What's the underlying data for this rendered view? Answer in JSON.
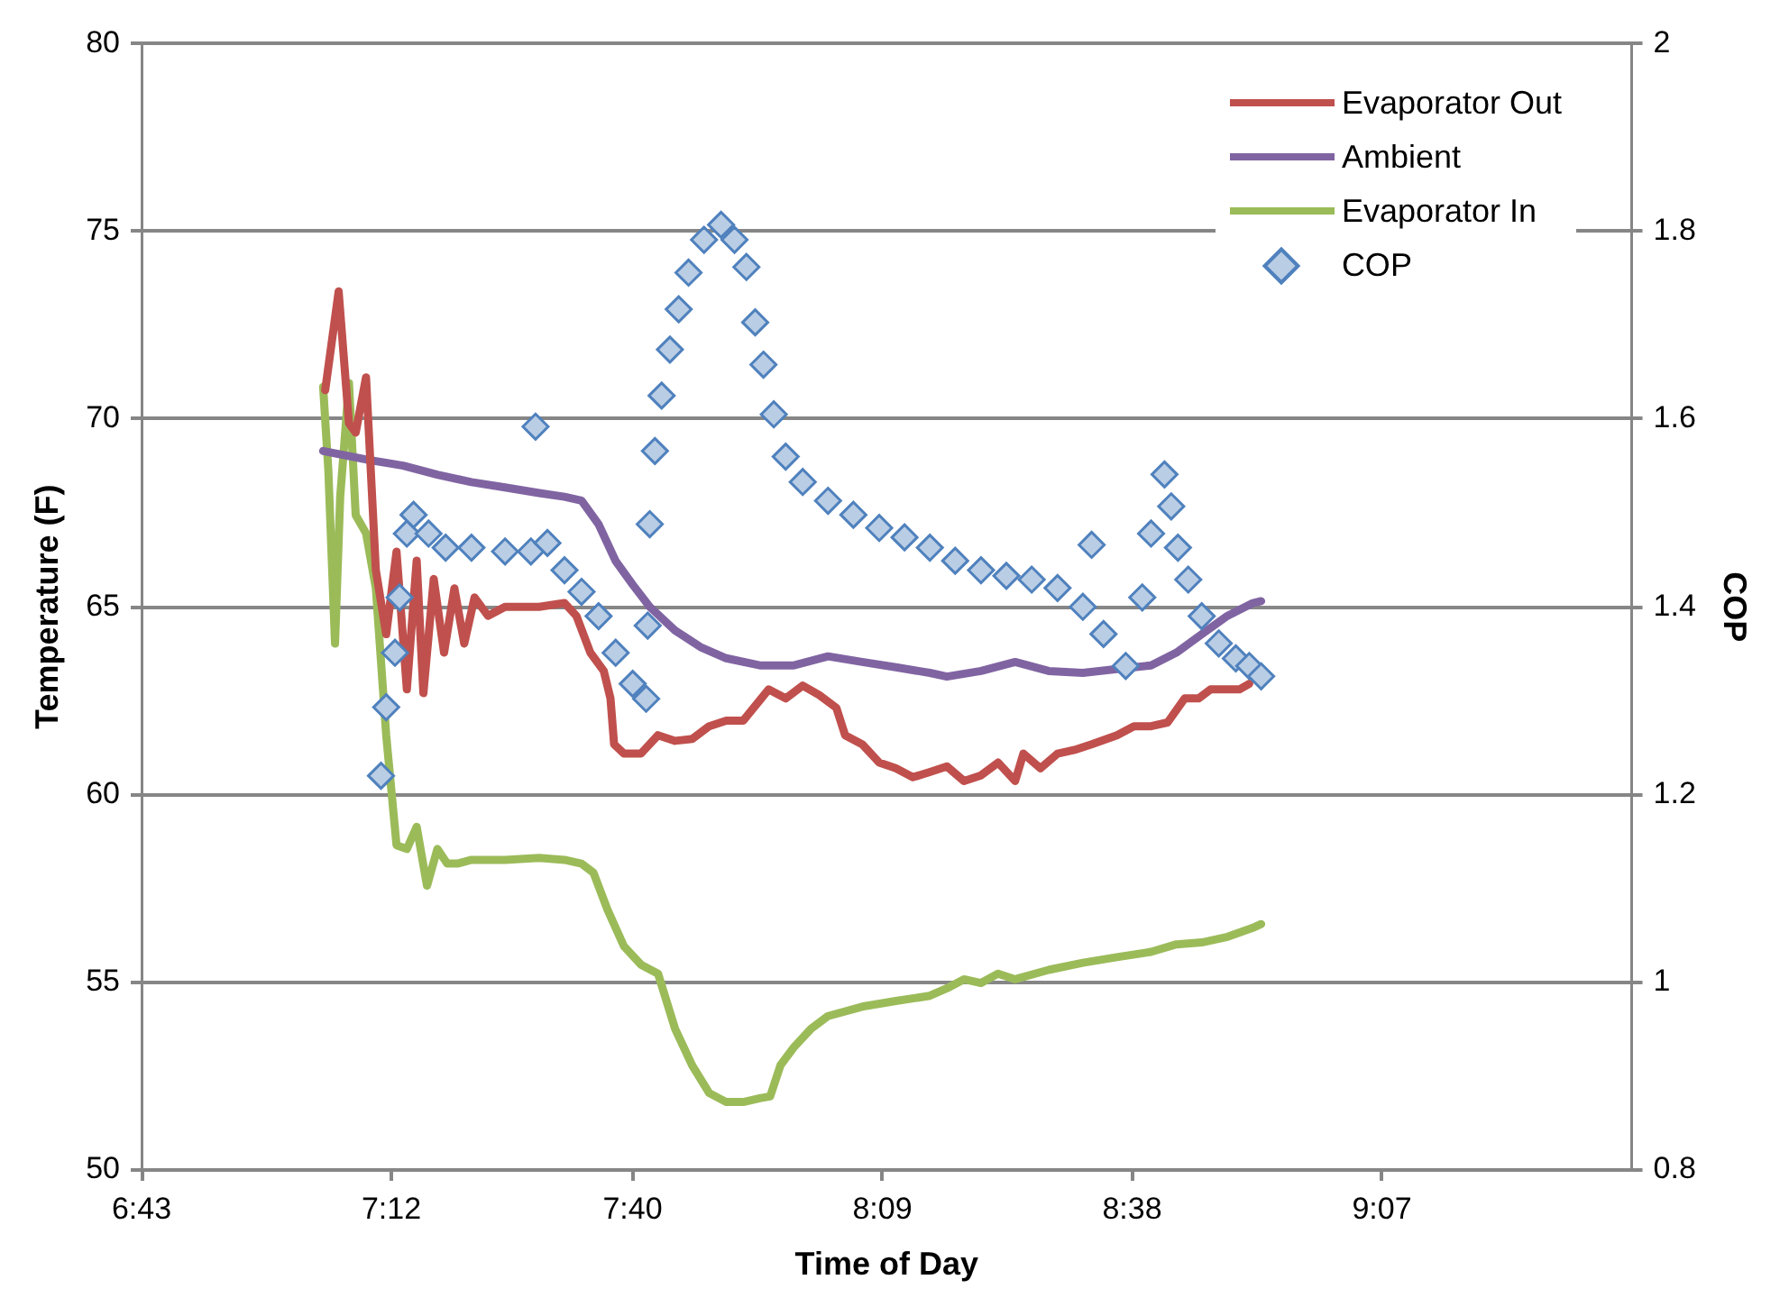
{
  "chart_data": {
    "type": "line",
    "xlabel": "Time of Day",
    "ylabel": "Temperature (F)",
    "y2label": "COP",
    "xlim": [
      6.7167,
      9.6
    ],
    "xticks": [
      {
        "value": 6.7167,
        "label": "6:43"
      },
      {
        "value": 7.2,
        "label": "7:12"
      },
      {
        "value": 7.6667,
        "label": "7:40"
      },
      {
        "value": 8.15,
        "label": "8:09"
      },
      {
        "value": 8.6333,
        "label": "8:38"
      },
      {
        "value": 9.1167,
        "label": "9:07"
      }
    ],
    "ylim": [
      50,
      80
    ],
    "yticks": [
      50,
      55,
      60,
      65,
      70,
      75,
      80
    ],
    "y2lim": [
      0.8,
      2
    ],
    "y2ticks": [
      0.8,
      1,
      1.2,
      1.4,
      1.6,
      1.8,
      2
    ],
    "grid": "y",
    "legend": "top right",
    "line_style": "solid",
    "marker": "none",
    "series": [
      {
        "name": "Evaporator Out",
        "color": "#c0504d",
        "x": [
          7.072,
          7.098,
          7.118,
          7.131,
          7.151,
          7.17,
          7.19,
          7.21,
          7.23,
          7.249,
          7.262,
          7.282,
          7.302,
          7.322,
          7.341,
          7.361,
          7.387,
          7.42,
          7.486,
          7.535,
          7.558,
          7.585,
          7.611,
          7.624,
          7.631,
          7.65,
          7.683,
          7.716,
          7.749,
          7.782,
          7.815,
          7.848,
          7.881,
          7.93,
          7.963,
          7.996,
          8.028,
          8.061,
          8.078,
          8.111,
          8.144,
          8.176,
          8.209,
          8.242,
          8.275,
          8.308,
          8.341,
          8.374,
          8.407,
          8.423,
          8.456,
          8.489,
          8.522,
          8.555,
          8.604,
          8.637,
          8.67,
          8.702,
          8.735,
          8.762,
          8.785,
          8.818,
          8.841,
          8.86
        ],
        "values": [
          70.77,
          73.4,
          69.89,
          69.64,
          71.11,
          65.98,
          64.27,
          66.47,
          62.8,
          66.23,
          62.7,
          65.74,
          63.78,
          65.49,
          64.02,
          65.25,
          64.76,
          65.0,
          65.0,
          65.1,
          64.76,
          63.78,
          63.29,
          62.56,
          61.34,
          61.09,
          61.09,
          61.58,
          61.43,
          61.48,
          61.82,
          61.97,
          61.97,
          62.8,
          62.56,
          62.9,
          62.65,
          62.31,
          61.58,
          61.34,
          60.85,
          60.7,
          60.46,
          60.6,
          60.75,
          60.36,
          60.51,
          60.85,
          60.36,
          61.09,
          60.7,
          61.09,
          61.19,
          61.34,
          61.58,
          61.82,
          61.82,
          61.92,
          62.56,
          62.56,
          62.8,
          62.8,
          62.8,
          62.95
        ]
      },
      {
        "name": "Ambient",
        "color": "#8064a2",
        "x": [
          7.068,
          7.157,
          7.223,
          7.289,
          7.355,
          7.42,
          7.486,
          7.535,
          7.568,
          7.601,
          7.634,
          7.667,
          7.7,
          7.749,
          7.798,
          7.848,
          7.913,
          7.979,
          8.045,
          8.111,
          8.176,
          8.242,
          8.275,
          8.341,
          8.407,
          8.472,
          8.538,
          8.604,
          8.67,
          8.719,
          8.768,
          8.818,
          8.867,
          8.883
        ],
        "values": [
          69.15,
          68.91,
          68.76,
          68.52,
          68.32,
          68.18,
          68.03,
          67.93,
          67.83,
          67.2,
          66.22,
          65.59,
          65.0,
          64.37,
          63.93,
          63.63,
          63.44,
          63.44,
          63.68,
          63.53,
          63.39,
          63.24,
          63.14,
          63.29,
          63.53,
          63.29,
          63.24,
          63.34,
          63.44,
          63.78,
          64.27,
          64.76,
          65.1,
          65.15
        ]
      },
      {
        "name": "Evaporator In",
        "color": "#9bbb59",
        "x": [
          7.068,
          7.078,
          7.091,
          7.101,
          7.118,
          7.131,
          7.151,
          7.17,
          7.19,
          7.21,
          7.23,
          7.249,
          7.269,
          7.289,
          7.308,
          7.328,
          7.355,
          7.42,
          7.486,
          7.535,
          7.568,
          7.591,
          7.618,
          7.65,
          7.683,
          7.716,
          7.749,
          7.782,
          7.815,
          7.848,
          7.881,
          7.913,
          7.933,
          7.953,
          7.979,
          8.012,
          8.045,
          8.111,
          8.176,
          8.242,
          8.275,
          8.308,
          8.341,
          8.374,
          8.407,
          8.472,
          8.538,
          8.604,
          8.67,
          8.719,
          8.768,
          8.818,
          8.867,
          8.883
        ],
        "values": [
          70.86,
          68.66,
          64.02,
          67.93,
          70.96,
          67.44,
          66.96,
          65.49,
          61.58,
          58.65,
          58.55,
          59.14,
          57.57,
          58.55,
          58.16,
          58.16,
          58.26,
          58.26,
          58.31,
          58.26,
          58.16,
          57.92,
          56.94,
          55.96,
          55.47,
          55.23,
          53.76,
          52.79,
          52.05,
          51.81,
          51.81,
          51.91,
          51.96,
          52.79,
          53.27,
          53.76,
          54.1,
          54.35,
          54.5,
          54.64,
          54.84,
          55.08,
          54.98,
          55.23,
          55.08,
          55.33,
          55.52,
          55.67,
          55.81,
          56.01,
          56.06,
          56.21,
          56.45,
          56.55
        ]
      },
      {
        "name": "COP",
        "type": "scatter",
        "axis": "y2",
        "marker": "diamond",
        "color": "#4f81bd",
        "x": [
          7.18,
          7.19,
          7.207,
          7.216,
          7.23,
          7.243,
          7.272,
          7.305,
          7.355,
          7.42,
          7.47,
          7.479,
          7.502,
          7.535,
          7.568,
          7.601,
          7.634,
          7.667,
          7.693,
          7.696,
          7.7,
          7.71,
          7.723,
          7.739,
          7.756,
          7.775,
          7.805,
          7.838,
          7.864,
          7.887,
          7.904,
          7.92,
          7.94,
          7.963,
          7.996,
          8.045,
          8.094,
          8.144,
          8.193,
          8.242,
          8.291,
          8.341,
          8.39,
          8.439,
          8.489,
          8.538,
          8.555,
          8.578,
          8.621,
          8.653,
          8.67,
          8.696,
          8.709,
          8.722,
          8.742,
          8.768,
          8.801,
          8.834,
          8.86,
          8.883
        ],
        "values": [
          1.22,
          1.293,
          1.351,
          1.41,
          1.478,
          1.498,
          1.478,
          1.463,
          1.463,
          1.459,
          1.459,
          1.592,
          1.468,
          1.439,
          1.416,
          1.39,
          1.351,
          1.318,
          1.302,
          1.38,
          1.488,
          1.566,
          1.625,
          1.674,
          1.717,
          1.756,
          1.791,
          1.807,
          1.791,
          1.762,
          1.703,
          1.658,
          1.605,
          1.56,
          1.533,
          1.513,
          1.498,
          1.484,
          1.474,
          1.463,
          1.449,
          1.439,
          1.433,
          1.429,
          1.42,
          1.4,
          1.466,
          1.371,
          1.337,
          1.41,
          1.478,
          1.541,
          1.507,
          1.463,
          1.429,
          1.39,
          1.361,
          1.345,
          1.337,
          1.326
        ]
      }
    ]
  }
}
